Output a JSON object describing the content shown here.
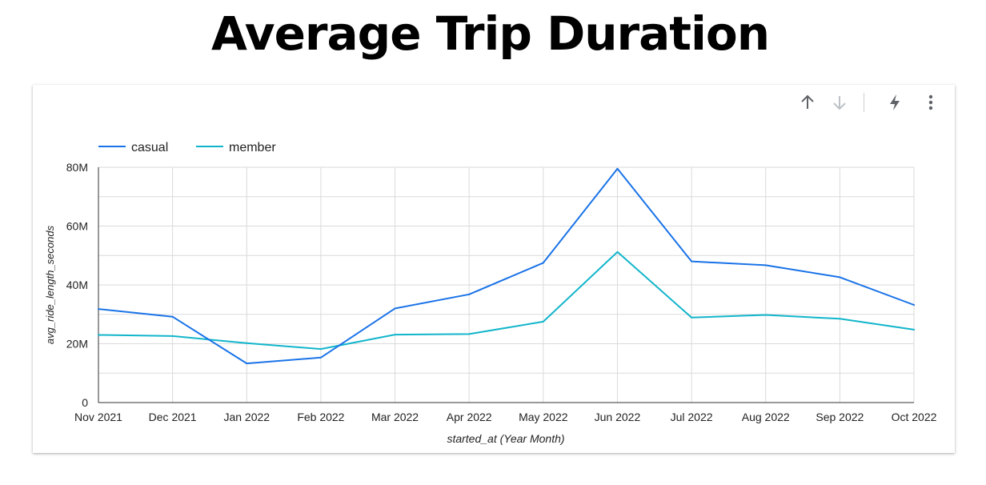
{
  "page": {
    "title": "Average Trip Duration"
  },
  "toolbar": {
    "icons": [
      "arrow-up-icon",
      "arrow-down-icon",
      "lightning-bolt-icon",
      "more-vertical-icon"
    ]
  },
  "colors": {
    "casual": "#1a73e8",
    "member": "#12b5cb",
    "grid": "#dadada",
    "axis": "#333333",
    "icon": "#5f6368",
    "icon_disabled": "#bdc1c6"
  },
  "chart_data": {
    "type": "line",
    "title": "Average Trip Duration",
    "xlabel": "started_at (Year Month)",
    "ylabel": "avg_ride_length_seconds",
    "categories": [
      "Nov 2021",
      "Dec 2021",
      "Jan 2022",
      "Feb 2022",
      "Mar 2022",
      "Apr 2022",
      "May 2022",
      "Jun 2022",
      "Jul 2022",
      "Aug 2022",
      "Sep 2022",
      "Oct 2022"
    ],
    "ylim": [
      0,
      80000000
    ],
    "yticks": [
      0,
      20000000,
      40000000,
      60000000,
      80000000
    ],
    "ytick_labels": [
      "0",
      "20M",
      "40M",
      "60M",
      "80M"
    ],
    "grid": true,
    "legend_position": "top-left",
    "series": [
      {
        "name": "casual",
        "values": [
          31800000,
          29200000,
          13300000,
          15300000,
          32000000,
          36800000,
          47500000,
          79500000,
          48000000,
          46700000,
          42600000,
          33200000
        ]
      },
      {
        "name": "member",
        "values": [
          23000000,
          22600000,
          20200000,
          18200000,
          23100000,
          23300000,
          27500000,
          51200000,
          28900000,
          29800000,
          28500000,
          24800000
        ]
      }
    ]
  }
}
